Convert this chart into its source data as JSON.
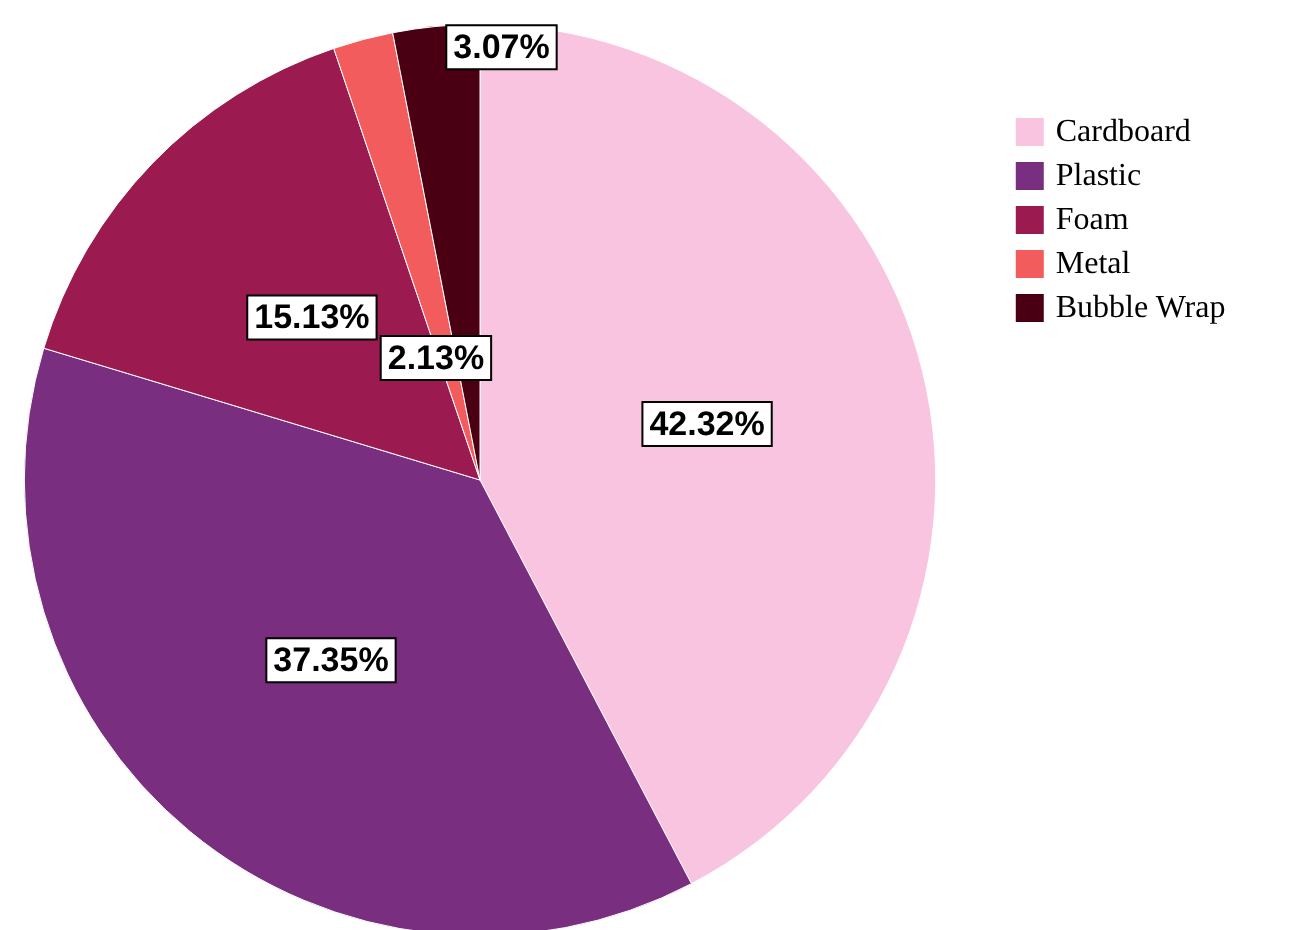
{
  "chart_data": {
    "type": "pie",
    "categories": [
      "Cardboard",
      "Plastic",
      "Foam",
      "Metal",
      "Bubble Wrap"
    ],
    "values": [
      42.32,
      37.35,
      15.13,
      2.13,
      3.07
    ],
    "colors": [
      "#f9c4df",
      "#7a2e80",
      "#9b1b50",
      "#f25c5c",
      "#4a0012"
    ],
    "value_labels": [
      "42.32%",
      "37.35%",
      "15.13%",
      "2.13%",
      "3.07%"
    ],
    "legend": "top right"
  }
}
